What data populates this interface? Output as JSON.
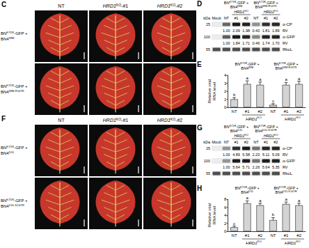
{
  "figure": {
    "photo_panels": [
      {
        "letter": "C",
        "columns": [
          [
            {
              "t": "NT"
            }
          ],
          [
            {
              "t": "HRD1",
              "i": true
            },
            {
              "t": "KO",
              "sup": true
            },
            {
              "t": "-#1"
            }
          ],
          [
            {
              "t": "HRD1",
              "i": true
            },
            {
              "t": "KO",
              "sup": true
            },
            {
              "t": "-#2"
            }
          ]
        ],
        "rows": [
          [
            {
              "t": "BN"
            },
            {
              "t": "K71R",
              "sup": true
            },
            {
              "t": "-GFP + BN4"
            },
            {
              "t": "WM",
              "sup": true
            }
          ],
          [
            {
              "t": "BN"
            },
            {
              "t": "K71R",
              "sup": true
            },
            {
              "t": "-GFP + BN4"
            },
            {
              "t": "WM-R147K",
              "sup": true
            }
          ]
        ]
      },
      {
        "letter": "F",
        "columns": [
          [
            {
              "t": "NT"
            }
          ],
          [
            {
              "t": "HRD1",
              "i": true
            },
            {
              "t": "KO",
              "sup": true
            },
            {
              "t": "-#1"
            }
          ],
          [
            {
              "t": "HRD1",
              "i": true
            },
            {
              "t": "KO",
              "sup": true
            },
            {
              "t": "-#2"
            }
          ]
        ],
        "rows": [
          [
            {
              "t": "BN"
            },
            {
              "t": "K71R",
              "sup": true
            },
            {
              "t": "-GFP + BN4"
            },
            {
              "t": "D11",
              "sup": true
            }
          ],
          [
            {
              "t": "BN"
            },
            {
              "t": "K71R",
              "sup": true
            },
            {
              "t": "-GFP + BN4"
            },
            {
              "t": "D11-K147R",
              "sup": true
            }
          ]
        ]
      }
    ],
    "blot_panels": [
      {
        "letter": "D",
        "groups": [
          {
            "label": [
              {
                "t": "BN"
              },
              {
                "t": "K71R",
                "sup": true
              },
              {
                "t": "-GFP + BN4"
              },
              {
                "t": "WM",
                "sup": true
              }
            ],
            "span": [
              1,
              3
            ]
          },
          {
            "label": [
              {
                "t": "BN"
              },
              {
                "t": "K71R",
                "sup": true
              },
              {
                "t": "-GFP + BN4"
              },
              {
                "t": "WM-R147K",
                "sup": true
              }
            ],
            "span": [
              4,
              6
            ]
          }
        ],
        "knockout_label": [
          {
            "t": "HRD1",
            "i": true
          },
          {
            "t": "KO",
            "sup": true
          }
        ],
        "knockout_spans": [
          [
            2,
            3
          ],
          [
            5,
            6
          ]
        ],
        "lanes": [
          "Mock",
          "NT",
          "#1",
          "#2",
          "NT",
          "#1",
          "#2"
        ],
        "unit": "kDa",
        "rows": [
          {
            "antibody": "α-CP",
            "marker": 25,
            "rv_label": "RV",
            "rv": [
              "1.00",
              "2.09",
              "1.98",
              "0.40",
              "1.81",
              "1.89"
            ]
          },
          {
            "antibody": "α-GFP",
            "marker": 100,
            "rv_label": "RV",
            "rv": [
              "1.00",
              "1.84",
              "1.71",
              "0.46",
              "1.74",
              "1.70"
            ]
          },
          {
            "antibody": "RbcL",
            "marker": 55
          }
        ]
      },
      {
        "letter": "G",
        "groups": [
          {
            "label": [
              {
                "t": "BN"
              },
              {
                "t": "K71R",
                "sup": true
              },
              {
                "t": "-GFP + BN4"
              },
              {
                "t": "D11",
                "sup": true
              }
            ],
            "span": [
              1,
              3
            ]
          },
          {
            "label": [
              {
                "t": "BN"
              },
              {
                "t": "K71R",
                "sup": true
              },
              {
                "t": "-GFP + BN4"
              },
              {
                "t": "D11-K147R",
                "sup": true
              }
            ],
            "span": [
              4,
              6
            ]
          }
        ],
        "knockout_label": [
          {
            "t": "HRD1",
            "i": true
          },
          {
            "t": "KO",
            "sup": true
          }
        ],
        "knockout_spans": [
          [
            2,
            3
          ],
          [
            5,
            6
          ]
        ],
        "lanes": [
          "Mock",
          "NT",
          "#1",
          "#2",
          "NT",
          "#1",
          "#2"
        ],
        "unit": "kDa",
        "rows": [
          {
            "antibody": "α-CP",
            "marker": 25,
            "rv_label": "RV",
            "rv": [
              "1.00",
              "4.89",
              "5.58",
              "2.20",
              "5.11",
              "5.09"
            ]
          },
          {
            "antibody": "α-GFP",
            "marker": 100,
            "rv_label": "RV",
            "rv": [
              "1.00",
              "5.64",
              "5.71",
              "2.26",
              "5.64",
              "5.35"
            ]
          },
          {
            "antibody": "RbcL",
            "marker": 55
          }
        ]
      }
    ]
  },
  "chart_data": [
    {
      "panel": "E",
      "type": "bar",
      "categories": [
        "NT",
        "#1",
        "#2",
        "NT",
        "#1",
        "#2"
      ],
      "values": [
        1.0,
        2.9,
        2.8,
        0.3,
        2.8,
        2.9
      ],
      "errors": [
        0.2,
        0.4,
        0.35,
        0.15,
        0.3,
        0.35
      ],
      "letters": [
        "b",
        "a",
        "a",
        "c",
        "a",
        "a"
      ],
      "color": "#d4d4d4",
      "ylabel": "Relative viral RNA level",
      "ylim": [
        0,
        4
      ],
      "yticks": [
        0,
        1,
        2,
        3,
        4
      ],
      "grid": false,
      "groups": [
        {
          "label": [
            {
              "t": "BN"
            },
            {
              "t": "K71R",
              "sup": true
            },
            {
              "t": "-GFP + BN4"
            },
            {
              "t": "WM",
              "sup": true
            }
          ],
          "span": [
            0,
            2
          ]
        },
        {
          "label": [
            {
              "t": "BN"
            },
            {
              "t": "K71R",
              "sup": true
            },
            {
              "t": "-GFP + BN4"
            },
            {
              "t": "WM-R147K",
              "sup": true
            }
          ],
          "span": [
            3,
            5
          ]
        }
      ],
      "knockout_label": [
        {
          "t": "HRD1",
          "i": true
        },
        {
          "t": "KO",
          "sup": true
        }
      ],
      "knockout_spans": [
        [
          1,
          2
        ],
        [
          4,
          5
        ]
      ]
    },
    {
      "panel": "H",
      "type": "bar",
      "categories": [
        "NT",
        "#1",
        "#2",
        "NT",
        "#1",
        "#2"
      ],
      "values": [
        1.0,
        7.0,
        6.5,
        2.8,
        6.8,
        6.5
      ],
      "errors": [
        0.3,
        0.6,
        0.5,
        0.6,
        0.5,
        0.5
      ],
      "letters": [
        "c",
        "a",
        "a",
        "b",
        "a",
        "a"
      ],
      "color": "#d4d4d4",
      "ylabel": "Relative viral RNA level",
      "ylim": [
        0,
        8
      ],
      "yticks": [
        0,
        2,
        4,
        6,
        8
      ],
      "grid": false,
      "groups": [
        {
          "label": [
            {
              "t": "BN"
            },
            {
              "t": "K71R",
              "sup": true
            },
            {
              "t": "-GFP + BN4"
            },
            {
              "t": "D11",
              "sup": true
            }
          ],
          "span": [
            0,
            2
          ]
        },
        {
          "label": [
            {
              "t": "BN"
            },
            {
              "t": "K71R",
              "sup": true
            },
            {
              "t": "-GFP + BN4"
            },
            {
              "t": "D11-K147R",
              "sup": true
            }
          ],
          "span": [
            3,
            5
          ]
        }
      ],
      "knockout_label": [
        {
          "t": "HRD1",
          "i": true
        },
        {
          "t": "KO",
          "sup": true
        }
      ],
      "knockout_spans": [
        [
          1,
          2
        ],
        [
          4,
          5
        ]
      ]
    }
  ]
}
